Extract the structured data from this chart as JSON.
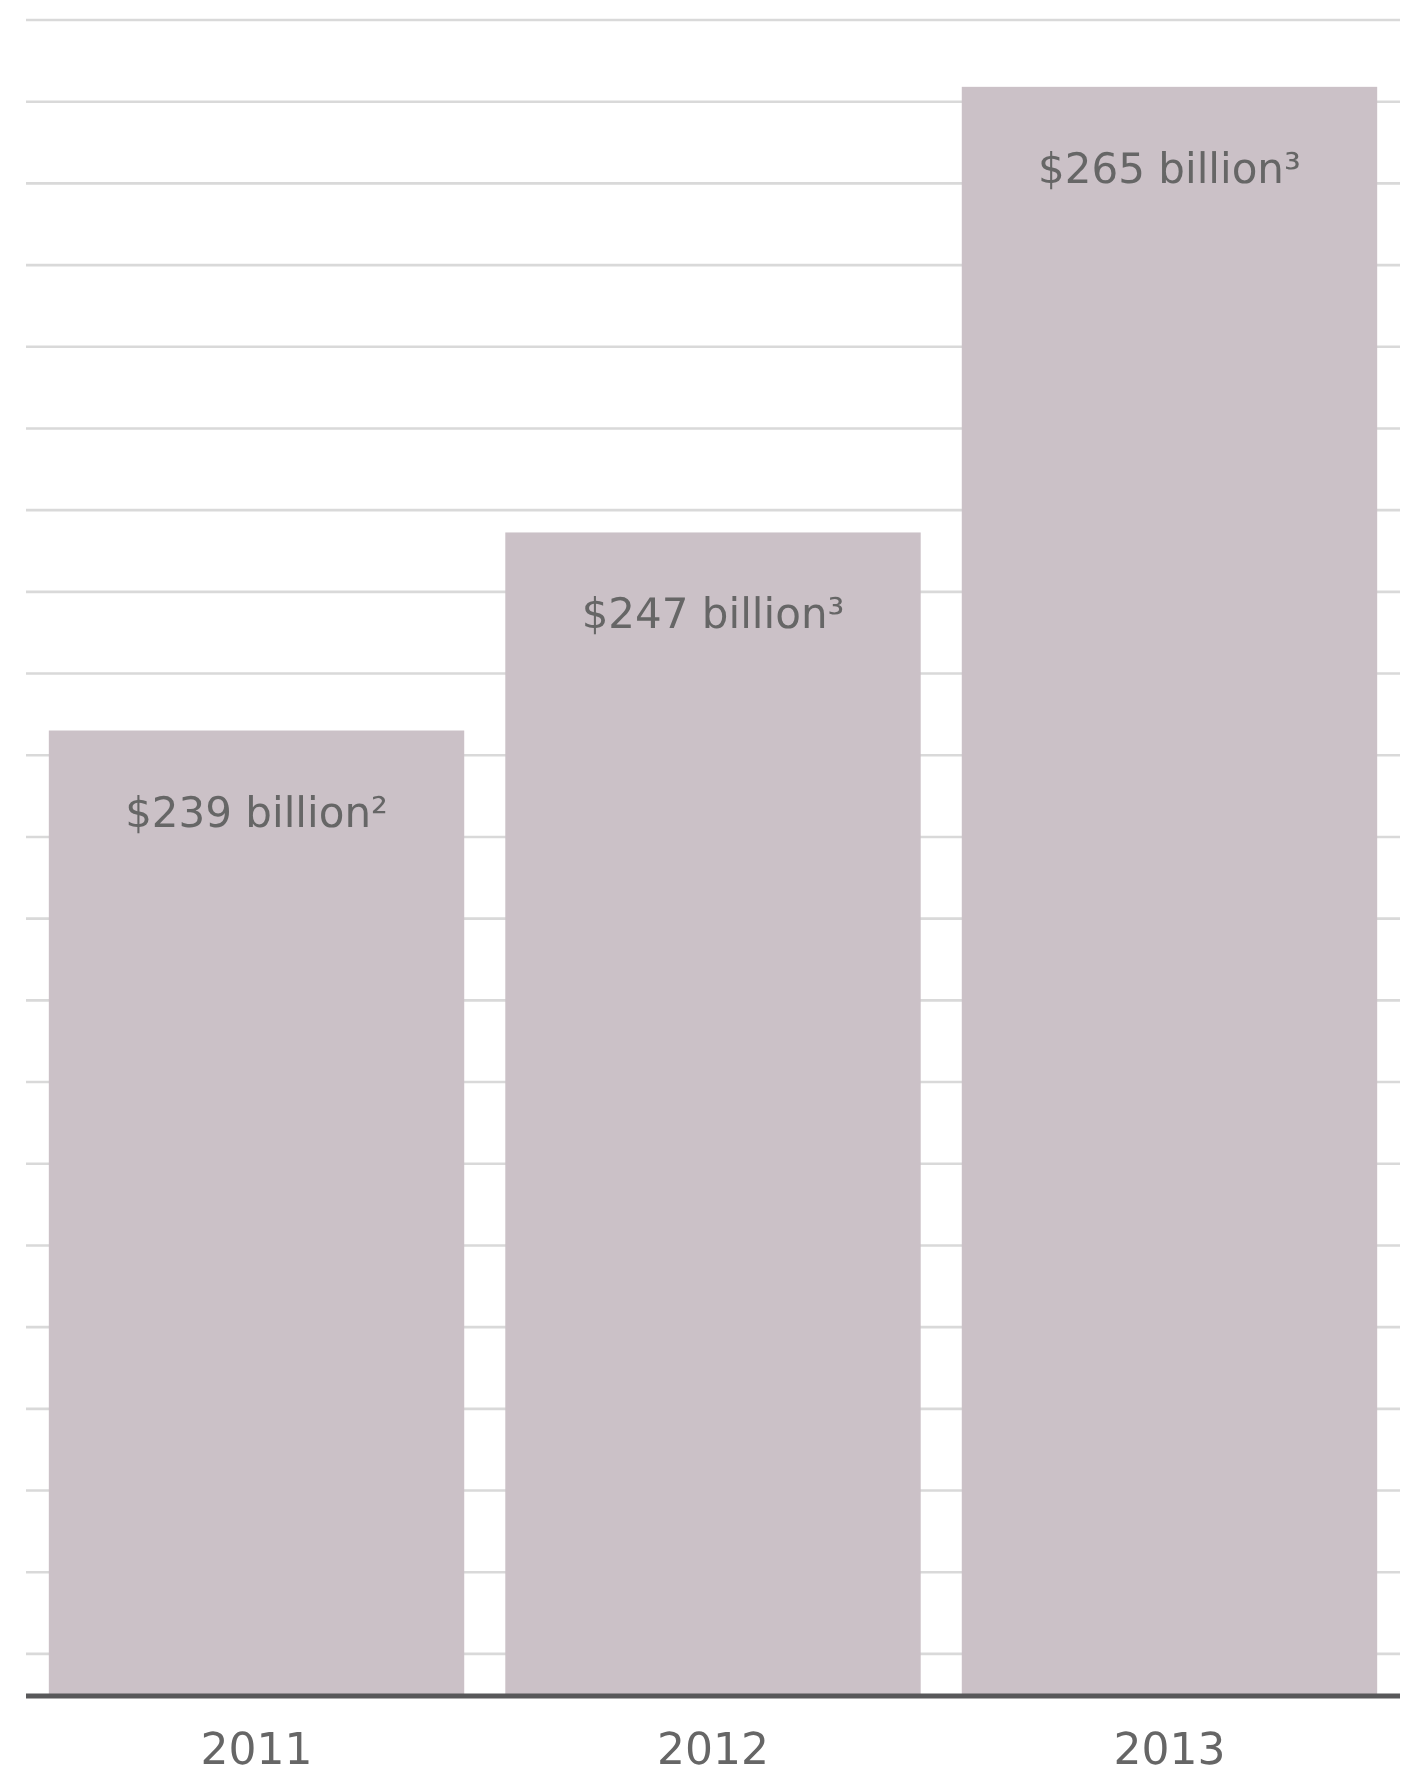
{
  "chart_data": {
    "type": "bar",
    "categories": [
      "2011",
      "2012",
      "2013"
    ],
    "values": [
      239,
      247,
      265
    ],
    "color": "#cbc1c7",
    "value_labels": [
      "$239 billion²",
      "$247 billion³",
      "$265 billion³"
    ],
    "ylim": [
      200,
      267.7
    ],
    "yticks": [
      {
        "value": 201.7,
        "label": null
      },
      {
        "value": 205,
        "label": null
      },
      {
        "value": 208.3,
        "label": null
      },
      {
        "value": 211.6,
        "label": null
      },
      {
        "value": 214.9,
        "label": null
      },
      {
        "value": 218.2,
        "label": null
      },
      {
        "value": 221.5,
        "label": null
      },
      {
        "value": 224.8,
        "label": null
      },
      {
        "value": 228.1,
        "label": null
      },
      {
        "value": 231.4,
        "label": null
      },
      {
        "value": 234.7,
        "label": null
      },
      {
        "value": 238,
        "label": null
      },
      {
        "value": 241.3,
        "label": null
      },
      {
        "value": 244.6,
        "label": null
      },
      {
        "value": 247.9,
        "label": null
      },
      {
        "value": 251.2,
        "label": null
      },
      {
        "value": 254.5,
        "label": null
      },
      {
        "value": 257.8,
        "label": null
      },
      {
        "value": 261.1,
        "label": null
      },
      {
        "value": 264.4,
        "label": null
      },
      {
        "value": 267.7,
        "label": null
      }
    ],
    "grid": "y",
    "tick_labels": "x"
  }
}
